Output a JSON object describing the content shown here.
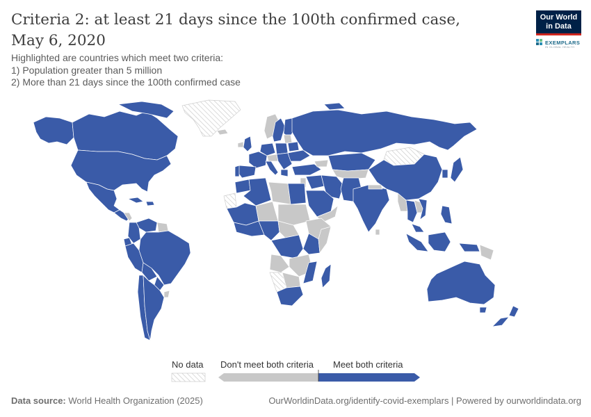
{
  "title": "Criteria 2: at least 21 days since the 100th confirmed case, May 6, 2020",
  "subtitle": [
    "Highlighted are countries which meet two criteria:",
    "1) Population greater than 5 million",
    "2) More than 21 days since the 100th confirmed case"
  ],
  "logo": {
    "line1": "Our World",
    "line2": "in Data",
    "partner": "EXEMPLARS",
    "partner_sub": "IN GLOBAL HEALTH"
  },
  "colors": {
    "meet": "#3a5ba8",
    "dont_meet": "#c8c8c8",
    "no_data_stroke": "#cccccc",
    "border": "#ffffff",
    "logo_bg": "#002147",
    "logo_accent": "#ce261e"
  },
  "legend": {
    "no_data": "No data",
    "dont_meet": "Don't meet both criteria",
    "meet": "Meet both criteria"
  },
  "footer": {
    "source_label": "Data source:",
    "source_value": "World Health Organization (2025)",
    "right": "OurWorldinData.org/identify-covid-exemplars | Powered by ourworldindata.org"
  }
}
